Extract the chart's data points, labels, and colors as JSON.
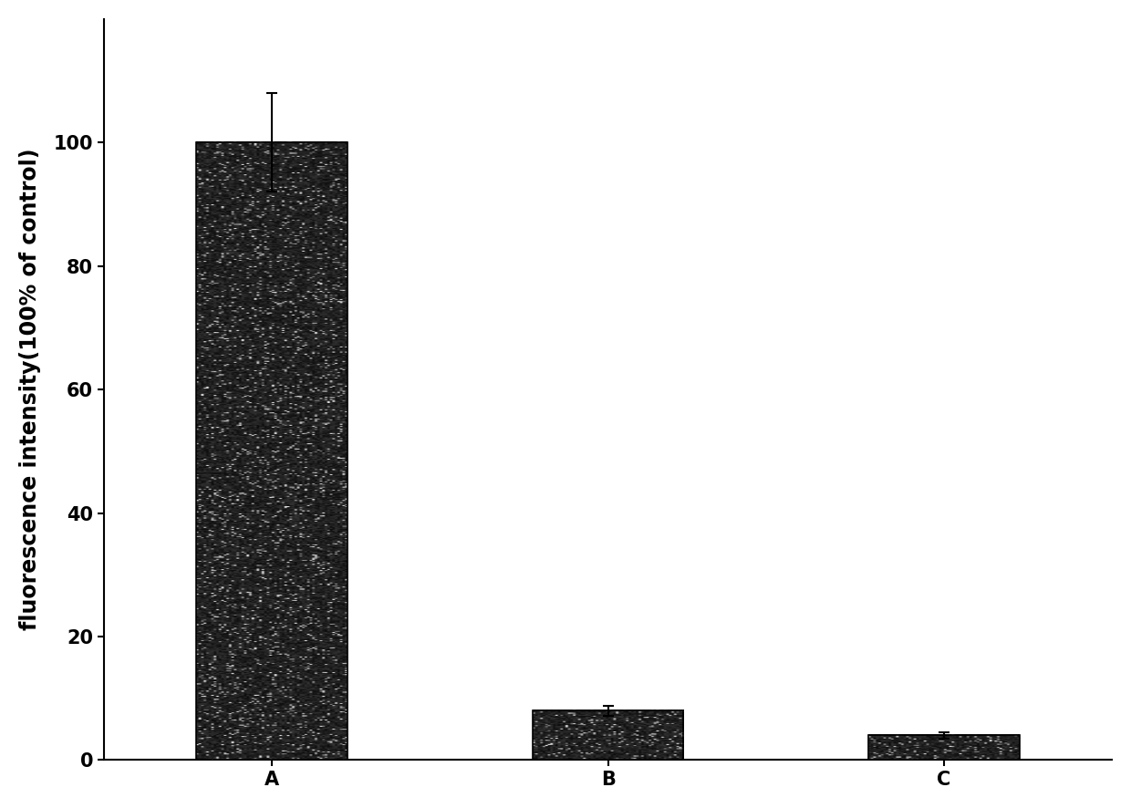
{
  "categories": [
    "A",
    "B",
    "C"
  ],
  "values": [
    100,
    8,
    4
  ],
  "errors": [
    8,
    0.8,
    0.5
  ],
  "bar_color": "#1a1a1a",
  "bar_width": 0.45,
  "ylabel": "fluorescence intensity(100% of control)",
  "xlabel": "",
  "ylim": [
    0,
    120
  ],
  "yticks": [
    0,
    20,
    40,
    60,
    80,
    100
  ],
  "background_color": "#ffffff",
  "ylabel_fontsize": 17,
  "tick_fontsize": 15,
  "error_capsize": 4,
  "error_color": "#000000",
  "error_linewidth": 1.5,
  "noise_density": 0.08,
  "bar_positions": [
    0,
    1,
    2
  ],
  "xlim": [
    -0.5,
    2.5
  ]
}
